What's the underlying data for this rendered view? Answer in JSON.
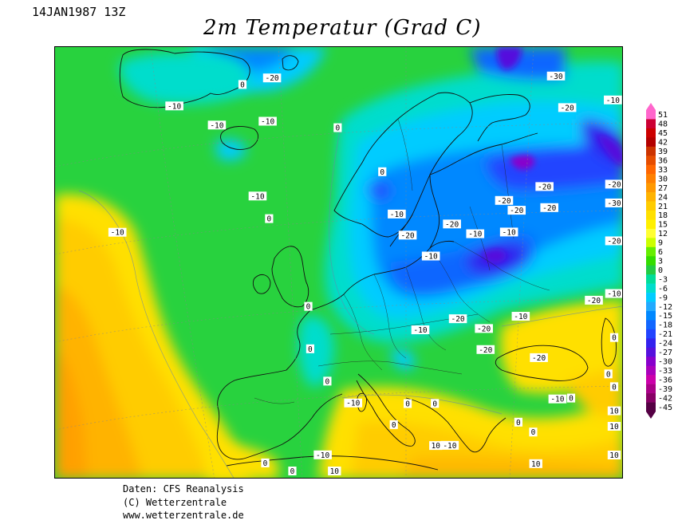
{
  "header": {
    "timestamp": "14JAN1987 13Z",
    "title": "2m Temperatur (Grad C)"
  },
  "footer": {
    "line1": "Daten: CFS Reanalysis",
    "line2": "(C) Wetterzentrale",
    "line3": "www.wetterzentrale.de"
  },
  "legend": {
    "ticks": [
      "51",
      "48",
      "45",
      "42",
      "39",
      "36",
      "33",
      "30",
      "27",
      "24",
      "21",
      "18",
      "15",
      "12",
      "9",
      "6",
      "3",
      "0",
      "-3",
      "-6",
      "-9",
      "-12",
      "-15",
      "-18",
      "-21",
      "-24",
      "-27",
      "-30",
      "-33",
      "-36",
      "-39",
      "-42",
      "-45"
    ],
    "colors": [
      "#ff66cc",
      "#cc0033",
      "#cc0000",
      "#b30000",
      "#cc3300",
      "#e64d00",
      "#ff6600",
      "#ff8000",
      "#ff9900",
      "#ffb300",
      "#ffcc00",
      "#ffe000",
      "#fff000",
      "#ffff33",
      "#ccff00",
      "#66ee00",
      "#33dd00",
      "#22cc44",
      "#00dd99",
      "#00ddcc",
      "#00ccff",
      "#22aaff",
      "#0088ff",
      "#1166ff",
      "#2244ff",
      "#3322ee",
      "#5511dd",
      "#8800cc",
      "#aa00bb",
      "#cc00aa",
      "#aa0088",
      "#880066",
      "#550044"
    ]
  },
  "map": {
    "labels": [
      {
        "text": "0",
        "lon": -28,
        "lat": 75
      },
      {
        "text": "-10",
        "lon": -40,
        "lat": 72
      },
      {
        "text": "-10",
        "lon": -30,
        "lat": 71
      },
      {
        "text": "-10",
        "lon": -20,
        "lat": 72
      },
      {
        "text": "-20",
        "lon": -22,
        "lat": 76
      },
      {
        "text": "0",
        "lon": -5,
        "lat": 72
      },
      {
        "text": "-10",
        "lon": -18,
        "lat": 65
      },
      {
        "text": "0",
        "lon": -15,
        "lat": 63
      },
      {
        "text": "-10",
        "lon": -40,
        "lat": 60
      },
      {
        "text": "0",
        "lon": 5,
        "lat": 68
      },
      {
        "text": "-10",
        "lon": 8,
        "lat": 64
      },
      {
        "text": "-20",
        "lon": 10,
        "lat": 62
      },
      {
        "text": "-20",
        "lon": 18,
        "lat": 63
      },
      {
        "text": "-10",
        "lon": 22,
        "lat": 62
      },
      {
        "text": "-20",
        "lon": 28,
        "lat": 65
      },
      {
        "text": "-20",
        "lon": 36,
        "lat": 66
      },
      {
        "text": "-10",
        "lon": 14,
        "lat": 60
      },
      {
        "text": "-10",
        "lon": 28,
        "lat": 62
      },
      {
        "text": "-20",
        "lon": 30,
        "lat": 64
      },
      {
        "text": "-20",
        "lon": 36,
        "lat": 64
      },
      {
        "text": "-30",
        "lon": 45,
        "lat": 76
      },
      {
        "text": "-20",
        "lon": 45,
        "lat": 73
      },
      {
        "text": "-10",
        "lon": 55,
        "lat": 73
      },
      {
        "text": "-20",
        "lon": 55,
        "lat": 65
      },
      {
        "text": "-30",
        "lon": 68,
        "lat": 62
      },
      {
        "text": "-20",
        "lon": 62,
        "lat": 59
      },
      {
        "text": "-10",
        "lon": 50,
        "lat": 55
      },
      {
        "text": "-20",
        "lon": 40,
        "lat": 55
      },
      {
        "text": "-10",
        "lon": 28,
        "lat": 54
      },
      {
        "text": "-20",
        "lon": 18,
        "lat": 54
      },
      {
        "text": "-20",
        "lon": 22,
        "lat": 53
      },
      {
        "text": "-10",
        "lon": 12,
        "lat": 53
      },
      {
        "text": "-20",
        "lon": 22,
        "lat": 51
      },
      {
        "text": "-20",
        "lon": 30,
        "lat": 50
      },
      {
        "text": "-10",
        "lon": 32,
        "lat": 46
      },
      {
        "text": "0",
        "lon": 60,
        "lat": 50
      },
      {
        "text": "0",
        "lon": -6,
        "lat": 55
      },
      {
        "text": "0",
        "lon": -5,
        "lat": 51
      },
      {
        "text": "0",
        "lon": -2,
        "lat": 48
      },
      {
        "text": "-10",
        "lon": 2,
        "lat": 46
      },
      {
        "text": "0",
        "lon": 10,
        "lat": 46
      },
      {
        "text": "0",
        "lon": 14,
        "lat": 46
      },
      {
        "text": "0",
        "lon": 8,
        "lat": 44
      },
      {
        "text": "10",
        "lon": 14,
        "lat": 42
      },
      {
        "text": "-10",
        "lon": 16,
        "lat": 42
      },
      {
        "text": "0",
        "lon": 26,
        "lat": 44
      },
      {
        "text": "0",
        "lon": 28,
        "lat": 43
      },
      {
        "text": "10",
        "lon": 28,
        "lat": 40
      },
      {
        "text": "0",
        "lon": 34,
        "lat": 46
      },
      {
        "text": "0",
        "lon": 40,
        "lat": 48
      },
      {
        "text": "10",
        "lon": 48,
        "lat": 44
      },
      {
        "text": "0",
        "lon": 52,
        "lat": 46
      },
      {
        "text": "10",
        "lon": 55,
        "lat": 42
      },
      {
        "text": "10",
        "lon": 45,
        "lat": 40
      },
      {
        "text": "0",
        "lon": -10,
        "lat": 40
      },
      {
        "text": "-10",
        "lon": -2,
        "lat": 41
      },
      {
        "text": "0",
        "lon": -6,
        "lat": 38
      },
      {
        "text": "10",
        "lon": 0,
        "lat": 35
      }
    ]
  }
}
